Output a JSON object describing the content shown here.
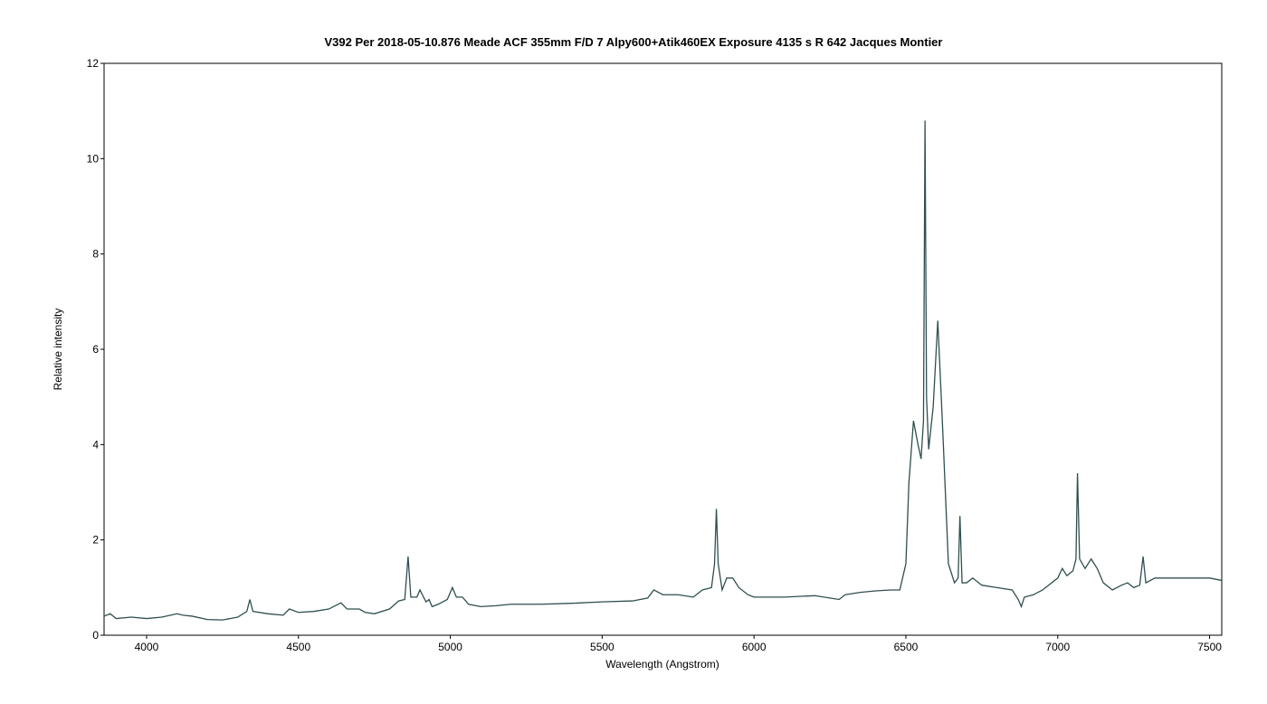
{
  "chart_data": {
    "type": "line",
    "title": "V392 Per   2018-05-10.876   Meade ACF 355mm F/D 7   Alpy600+Atik460EX   Exposure 4135 s   R 642   Jacques Montier",
    "x_label": "Wavelength (Angstrom)",
    "y_label": "Relative intensity",
    "xlim": [
      3860,
      7540
    ],
    "ylim": [
      0,
      12
    ],
    "xticks": [
      4000,
      4500,
      5000,
      5500,
      6000,
      6500,
      7000,
      7500
    ],
    "yticks": [
      0,
      2,
      4,
      6,
      8,
      10,
      12
    ],
    "grid": false,
    "series": [
      {
        "color": "#2f4f4f",
        "x": [
          3860,
          3880,
          3900,
          3950,
          4000,
          4050,
          4100,
          4120,
          4150,
          4200,
          4250,
          4300,
          4330,
          4340,
          4350,
          4400,
          4450,
          4470,
          4500,
          4550,
          4600,
          4640,
          4660,
          4700,
          4720,
          4750,
          4800,
          4830,
          4850,
          4861,
          4870,
          4890,
          4900,
          4920,
          4930,
          4940,
          4960,
          4990,
          5007,
          5020,
          5040,
          5060,
          5100,
          5150,
          5200,
          5300,
          5400,
          5500,
          5600,
          5650,
          5670,
          5700,
          5750,
          5800,
          5830,
          5860,
          5870,
          5876,
          5882,
          5895,
          5910,
          5930,
          5950,
          5980,
          6000,
          6100,
          6200,
          6280,
          6300,
          6350,
          6400,
          6450,
          6480,
          6500,
          6510,
          6525,
          6540,
          6550,
          6558,
          6563,
          6568,
          6575,
          6590,
          6605,
          6620,
          6640,
          6660,
          6672,
          6678,
          6685,
          6700,
          6720,
          6750,
          6800,
          6850,
          6870,
          6880,
          6890,
          6920,
          6950,
          7000,
          7015,
          7030,
          7050,
          7060,
          7065,
          7072,
          7090,
          7110,
          7130,
          7150,
          7180,
          7210,
          7230,
          7250,
          7270,
          7281,
          7290,
          7320,
          7400,
          7500,
          7540
        ],
        "values": [
          0.4,
          0.45,
          0.35,
          0.38,
          0.35,
          0.38,
          0.45,
          0.42,
          0.4,
          0.33,
          0.32,
          0.38,
          0.5,
          0.75,
          0.5,
          0.45,
          0.42,
          0.55,
          0.48,
          0.5,
          0.55,
          0.68,
          0.55,
          0.55,
          0.48,
          0.45,
          0.55,
          0.72,
          0.75,
          1.65,
          0.8,
          0.8,
          0.95,
          0.7,
          0.75,
          0.6,
          0.65,
          0.75,
          1.0,
          0.8,
          0.8,
          0.65,
          0.6,
          0.62,
          0.65,
          0.65,
          0.67,
          0.7,
          0.72,
          0.78,
          0.95,
          0.85,
          0.85,
          0.8,
          0.95,
          1.0,
          1.5,
          2.65,
          1.5,
          0.95,
          1.2,
          1.2,
          1.0,
          0.85,
          0.8,
          0.8,
          0.83,
          0.75,
          0.85,
          0.9,
          0.93,
          0.95,
          0.95,
          1.5,
          3.2,
          4.5,
          4.0,
          3.7,
          4.5,
          10.8,
          5.0,
          3.9,
          4.8,
          6.6,
          4.5,
          1.5,
          1.1,
          1.2,
          2.5,
          1.1,
          1.1,
          1.2,
          1.05,
          1.0,
          0.95,
          0.75,
          0.6,
          0.8,
          0.85,
          0.95,
          1.2,
          1.4,
          1.25,
          1.35,
          1.6,
          3.4,
          1.6,
          1.4,
          1.6,
          1.4,
          1.1,
          0.95,
          1.05,
          1.1,
          1.0,
          1.05,
          1.65,
          1.1,
          1.2,
          1.2,
          1.2,
          1.15
        ]
      }
    ]
  }
}
